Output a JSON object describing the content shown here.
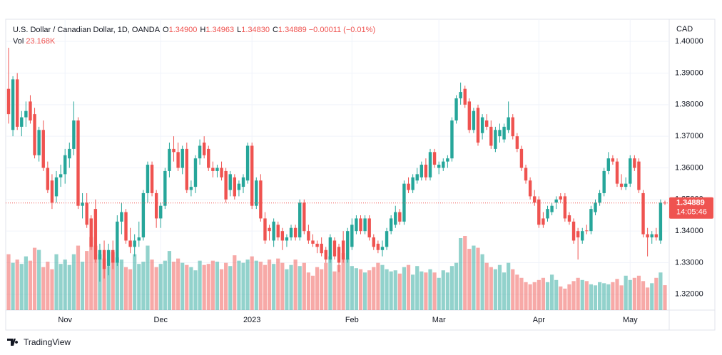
{
  "chart_data": {
    "type": "candlestick",
    "legend": {
      "symbol": "U.S. Dollar / Canadian Dollar, 1D, OANDA",
      "fields": [
        {
          "label": "O",
          "value": "1.34900"
        },
        {
          "label": "H",
          "value": "1.34963"
        },
        {
          "label": "L",
          "value": "1.34830"
        },
        {
          "label": "C",
          "value": "1.34889"
        }
      ],
      "change": "−0.00011 (−0.01%)"
    },
    "volume_title": "Vol",
    "volume_label": "23.168K",
    "currency": "CAD",
    "last_price_label": "1.34889",
    "countdown": "14:05:46",
    "brand": "TradingView",
    "up_color": "#26a69a",
    "down_color": "#ef5350",
    "categories": [
      null,
      null,
      null,
      null,
      null,
      null,
      null,
      null,
      null,
      null,
      null,
      null,
      null,
      "Nov",
      null,
      null,
      null,
      null,
      null,
      null,
      null,
      null,
      null,
      null,
      null,
      null,
      null,
      null,
      null,
      null,
      null,
      null,
      null,
      null,
      null,
      "Dec",
      null,
      null,
      null,
      null,
      null,
      null,
      null,
      null,
      null,
      null,
      null,
      null,
      null,
      null,
      null,
      null,
      null,
      null,
      null,
      null,
      "2023",
      null,
      null,
      null,
      null,
      null,
      null,
      null,
      null,
      null,
      null,
      null,
      null,
      null,
      null,
      null,
      null,
      null,
      null,
      null,
      null,
      null,
      null,
      "Feb",
      null,
      null,
      null,
      null,
      null,
      null,
      null,
      null,
      null,
      null,
      null,
      null,
      null,
      null,
      null,
      null,
      null,
      null,
      null,
      "Mar",
      null,
      null,
      null,
      null,
      null,
      null,
      null,
      null,
      null,
      null,
      null,
      null,
      null,
      null,
      null,
      null,
      null,
      null,
      null,
      null,
      null,
      null,
      "Apr",
      null,
      null,
      null,
      null,
      null,
      null,
      null,
      null,
      null,
      null,
      null,
      null,
      null,
      null,
      null,
      null,
      null,
      null,
      null,
      null,
      "May",
      null,
      null,
      null,
      null,
      null,
      null,
      null,
      null
    ],
    "candles": [
      [
        1.385,
        1.398,
        1.374,
        1.377
      ],
      [
        1.372,
        1.389,
        1.37,
        1.388
      ],
      [
        1.388,
        1.39,
        1.372,
        1.373
      ],
      [
        1.373,
        1.378,
        1.37,
        1.376
      ],
      [
        1.376,
        1.381,
        1.373,
        1.378
      ],
      [
        1.381,
        1.383,
        1.374,
        1.375
      ],
      [
        1.377,
        1.379,
        1.363,
        1.364
      ],
      [
        1.364,
        1.373,
        1.362,
        1.372
      ],
      [
        1.372,
        1.375,
        1.359,
        1.36
      ],
      [
        1.36,
        1.362,
        1.352,
        1.353
      ],
      [
        1.356,
        1.358,
        1.347,
        1.349
      ],
      [
        1.351,
        1.359,
        1.349,
        1.357
      ],
      [
        1.357,
        1.361,
        1.354,
        1.358
      ],
      [
        1.358,
        1.366,
        1.355,
        1.364
      ],
      [
        1.363,
        1.368,
        1.36,
        1.366
      ],
      [
        1.366,
        1.381,
        1.364,
        1.375
      ],
      [
        1.375,
        1.376,
        1.347,
        1.348
      ],
      [
        1.348,
        1.352,
        1.344,
        1.349
      ],
      [
        1.349,
        1.352,
        1.341,
        1.342
      ],
      [
        1.344,
        1.345,
        1.334,
        1.335
      ],
      [
        1.347,
        1.35,
        1.33,
        1.331
      ],
      [
        1.331,
        1.336,
        1.324,
        1.334
      ],
      [
        1.334,
        1.337,
        1.325,
        1.328
      ],
      [
        1.329,
        1.336,
        1.326,
        1.334
      ],
      [
        1.334,
        1.337,
        1.328,
        1.33
      ],
      [
        1.33,
        1.345,
        1.329,
        1.343
      ],
      [
        1.343,
        1.349,
        1.339,
        1.346
      ],
      [
        1.346,
        1.347,
        1.336,
        1.337
      ],
      [
        1.337,
        1.341,
        1.333,
        1.335
      ],
      [
        1.335,
        1.339,
        1.332,
        1.337
      ],
      [
        1.337,
        1.343,
        1.335,
        1.338
      ],
      [
        1.338,
        1.353,
        1.337,
        1.352
      ],
      [
        1.352,
        1.362,
        1.349,
        1.361
      ],
      [
        1.361,
        1.362,
        1.351,
        1.352
      ],
      [
        1.352,
        1.353,
        1.341,
        1.344
      ],
      [
        1.344,
        1.349,
        1.341,
        1.348
      ],
      [
        1.348,
        1.36,
        1.347,
        1.359
      ],
      [
        1.359,
        1.368,
        1.357,
        1.366
      ],
      [
        1.366,
        1.37,
        1.362,
        1.365
      ],
      [
        1.365,
        1.368,
        1.359,
        1.36
      ],
      [
        1.36,
        1.367,
        1.358,
        1.366
      ],
      [
        1.366,
        1.368,
        1.352,
        1.353
      ],
      [
        1.353,
        1.356,
        1.351,
        1.354
      ],
      [
        1.354,
        1.364,
        1.352,
        1.363
      ],
      [
        1.363,
        1.369,
        1.361,
        1.367
      ],
      [
        1.368,
        1.37,
        1.363,
        1.364
      ],
      [
        1.366,
        1.367,
        1.359,
        1.36
      ],
      [
        1.36,
        1.362,
        1.357,
        1.359
      ],
      [
        1.359,
        1.361,
        1.357,
        1.36
      ],
      [
        1.36,
        1.362,
        1.356,
        1.357
      ],
      [
        1.359,
        1.36,
        1.349,
        1.35
      ],
      [
        1.353,
        1.359,
        1.351,
        1.358
      ],
      [
        1.357,
        1.358,
        1.35,
        1.351
      ],
      [
        1.353,
        1.356,
        1.351,
        1.355
      ],
      [
        1.354,
        1.358,
        1.352,
        1.357
      ],
      [
        1.356,
        1.368,
        1.355,
        1.367
      ],
      [
        1.367,
        1.368,
        1.347,
        1.348
      ],
      [
        1.348,
        1.357,
        1.347,
        1.356
      ],
      [
        1.356,
        1.358,
        1.343,
        1.344
      ],
      [
        1.344,
        1.346,
        1.336,
        1.337
      ],
      [
        1.341,
        1.342,
        1.337,
        1.34
      ],
      [
        1.337,
        1.344,
        1.335,
        1.343
      ],
      [
        1.342,
        1.343,
        1.337,
        1.338
      ],
      [
        1.34,
        1.341,
        1.334,
        1.337
      ],
      [
        1.337,
        1.339,
        1.335,
        1.338
      ],
      [
        1.338,
        1.342,
        1.337,
        1.341
      ],
      [
        1.341,
        1.342,
        1.337,
        1.338
      ],
      [
        1.338,
        1.35,
        1.337,
        1.349
      ],
      [
        1.349,
        1.35,
        1.339,
        1.34
      ],
      [
        1.34,
        1.342,
        1.336,
        1.337
      ],
      [
        1.337,
        1.339,
        1.335,
        1.336
      ],
      [
        1.336,
        1.337,
        1.333,
        1.335
      ],
      [
        1.336,
        1.338,
        1.332,
        1.333
      ],
      [
        1.334,
        1.335,
        1.33,
        1.331
      ],
      [
        1.331,
        1.339,
        1.33,
        1.338
      ],
      [
        1.337,
        1.338,
        1.331,
        1.332
      ],
      [
        1.335,
        1.336,
        1.327,
        1.33
      ],
      [
        1.337,
        1.34,
        1.33,
        1.331
      ],
      [
        1.331,
        1.341,
        1.33,
        1.34
      ],
      [
        1.335,
        1.344,
        1.334,
        1.342
      ],
      [
        1.34,
        1.345,
        1.339,
        1.344
      ],
      [
        1.344,
        1.345,
        1.339,
        1.34
      ],
      [
        1.34,
        1.345,
        1.339,
        1.344
      ],
      [
        1.344,
        1.345,
        1.337,
        1.338
      ],
      [
        1.338,
        1.339,
        1.334,
        1.335
      ],
      [
        1.336,
        1.337,
        1.333,
        1.334
      ],
      [
        1.334,
        1.337,
        1.332,
        1.335
      ],
      [
        1.335,
        1.341,
        1.334,
        1.34
      ],
      [
        1.34,
        1.345,
        1.339,
        1.344
      ],
      [
        1.342,
        1.348,
        1.341,
        1.346
      ],
      [
        1.346,
        1.347,
        1.342,
        1.343
      ],
      [
        1.343,
        1.356,
        1.342,
        1.355
      ],
      [
        1.355,
        1.357,
        1.352,
        1.353
      ],
      [
        1.353,
        1.358,
        1.352,
        1.357
      ],
      [
        1.356,
        1.36,
        1.355,
        1.358
      ],
      [
        1.357,
        1.362,
        1.356,
        1.361
      ],
      [
        1.361,
        1.363,
        1.356,
        1.357
      ],
      [
        1.357,
        1.366,
        1.356,
        1.365
      ],
      [
        1.365,
        1.366,
        1.36,
        1.361
      ],
      [
        1.36,
        1.362,
        1.358,
        1.361
      ],
      [
        1.36,
        1.363,
        1.359,
        1.362
      ],
      [
        1.362,
        1.364,
        1.36,
        1.363
      ],
      [
        1.363,
        1.376,
        1.362,
        1.375
      ],
      [
        1.375,
        1.383,
        1.374,
        1.382
      ],
      [
        1.382,
        1.387,
        1.38,
        1.384
      ],
      [
        1.385,
        1.386,
        1.379,
        1.38
      ],
      [
        1.381,
        1.382,
        1.371,
        1.372
      ],
      [
        1.372,
        1.379,
        1.371,
        1.378
      ],
      [
        1.379,
        1.38,
        1.367,
        1.368
      ],
      [
        1.371,
        1.377,
        1.369,
        1.376
      ],
      [
        1.375,
        1.377,
        1.372,
        1.373
      ],
      [
        1.373,
        1.375,
        1.366,
        1.367
      ],
      [
        1.366,
        1.373,
        1.365,
        1.372
      ],
      [
        1.37,
        1.374,
        1.368,
        1.372
      ],
      [
        1.369,
        1.374,
        1.368,
        1.373
      ],
      [
        1.372,
        1.381,
        1.371,
        1.376
      ],
      [
        1.376,
        1.377,
        1.369,
        1.37
      ],
      [
        1.37,
        1.371,
        1.365,
        1.366
      ],
      [
        1.366,
        1.367,
        1.359,
        1.36
      ],
      [
        1.36,
        1.361,
        1.355,
        1.356
      ],
      [
        1.356,
        1.357,
        1.35,
        1.351
      ],
      [
        1.351,
        1.353,
        1.348,
        1.349
      ],
      [
        1.35,
        1.351,
        1.341,
        1.342
      ],
      [
        1.344,
        1.346,
        1.341,
        1.342
      ],
      [
        1.344,
        1.348,
        1.343,
        1.347
      ],
      [
        1.346,
        1.349,
        1.345,
        1.348
      ],
      [
        1.349,
        1.351,
        1.347,
        1.35
      ],
      [
        1.351,
        1.352,
        1.349,
        1.35
      ],
      [
        1.351,
        1.352,
        1.343,
        1.344
      ],
      [
        1.345,
        1.346,
        1.342,
        1.343
      ],
      [
        1.343,
        1.344,
        1.336,
        1.337
      ],
      [
        1.34,
        1.341,
        1.331,
        1.338
      ],
      [
        1.337,
        1.341,
        1.336,
        1.34
      ],
      [
        1.3402,
        1.342,
        1.339,
        1.34
      ],
      [
        1.34,
        1.348,
        1.339,
        1.347
      ],
      [
        1.346,
        1.35,
        1.345,
        1.349
      ],
      [
        1.349,
        1.353,
        1.348,
        1.352
      ],
      [
        1.352,
        1.36,
        1.351,
        1.359
      ],
      [
        1.359,
        1.365,
        1.358,
        1.363
      ],
      [
        1.363,
        1.364,
        1.361,
        1.362
      ],
      [
        1.362,
        1.363,
        1.354,
        1.355
      ],
      [
        1.355,
        1.358,
        1.353,
        1.354
      ],
      [
        1.354,
        1.357,
        1.353,
        1.355
      ],
      [
        1.355,
        1.364,
        1.354,
        1.363
      ],
      [
        1.363,
        1.364,
        1.359,
        1.36
      ],
      [
        1.362,
        1.363,
        1.352,
        1.353
      ],
      [
        1.352,
        1.353,
        1.338,
        1.339
      ],
      [
        1.339,
        1.341,
        1.332,
        1.338
      ],
      [
        1.338,
        1.34,
        1.336,
        1.339
      ],
      [
        1.339,
        1.341,
        1.337,
        1.338
      ],
      [
        1.337,
        1.35,
        1.336,
        1.349
      ],
      [
        1.349,
        1.34963,
        1.3483,
        1.34889
      ]
    ],
    "volume": [
      52,
      44,
      47,
      43,
      50,
      46,
      58,
      56,
      40,
      45,
      38,
      52,
      43,
      47,
      42,
      52,
      60,
      45,
      55,
      68,
      60,
      52,
      48,
      41,
      54,
      49,
      47,
      40,
      38,
      52,
      43,
      45,
      60,
      47,
      40,
      43,
      46,
      55,
      45,
      48,
      44,
      42,
      40,
      37,
      46,
      42,
      43,
      46,
      45,
      38,
      44,
      41,
      51,
      46,
      44,
      47,
      50,
      46,
      45,
      42,
      47,
      43,
      48,
      44,
      38,
      42,
      47,
      41,
      44,
      35,
      32,
      40,
      38,
      44,
      50,
      36,
      42,
      53,
      48,
      41,
      39,
      38,
      35,
      37,
      40,
      44,
      42,
      38,
      36,
      37,
      34,
      40,
      42,
      33,
      41,
      36,
      35,
      38,
      35,
      30,
      37,
      35,
      41,
      44,
      67,
      69,
      57,
      60,
      58,
      52,
      44,
      40,
      38,
      42,
      35,
      44,
      38,
      33,
      30,
      26,
      24,
      26,
      28,
      30,
      26,
      33,
      28,
      22,
      20,
      24,
      27,
      30,
      28,
      27,
      24,
      23,
      26,
      25,
      24,
      26,
      29,
      23,
      32,
      28,
      30,
      32,
      27,
      21,
      25,
      30,
      35,
      23.168
    ],
    "ylim": [
      1.315,
      1.4068
    ],
    "yticks": [
      {
        "value": 1.32,
        "label": "1.32000"
      },
      {
        "value": 1.33,
        "label": "1.33000"
      },
      {
        "value": 1.34,
        "label": "1.34000"
      },
      {
        "value": 1.35,
        "label": "1.35000"
      },
      {
        "value": 1.36,
        "label": "1.36000"
      },
      {
        "value": 1.37,
        "label": "1.37000"
      },
      {
        "value": 1.38,
        "label": "1.38000"
      },
      {
        "value": 1.39,
        "label": "1.39000"
      },
      {
        "value": 1.4,
        "label": "1.40000"
      }
    ],
    "grid": true
  }
}
